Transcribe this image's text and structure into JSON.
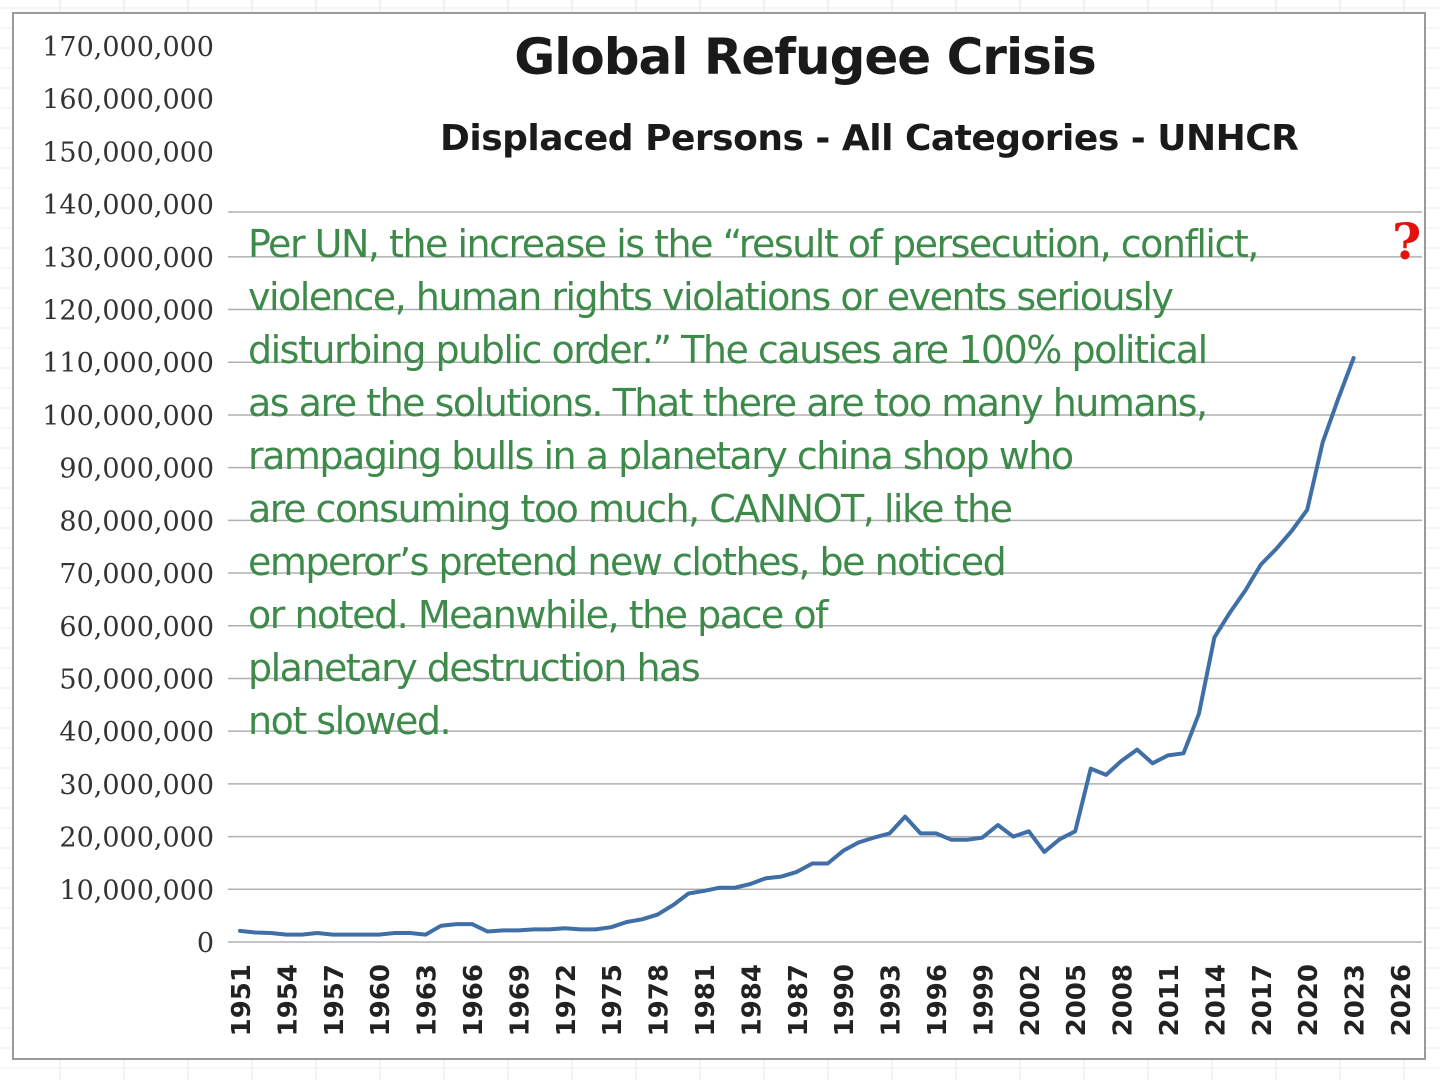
{
  "chart_data": {
    "type": "line",
    "title": "Global Refugee Crisis",
    "subtitle": "Displaced Persons - All Categories - UNHCR",
    "xlabel": "",
    "ylabel": "",
    "ylim": [
      0,
      170000000
    ],
    "xlim": [
      1951,
      2026
    ],
    "grid": "horizontal",
    "y_tick_labels": [
      "0",
      "10,000,000",
      "20,000,000",
      "30,000,000",
      "40,000,000",
      "50,000,000",
      "60,000,000",
      "70,000,000",
      "80,000,000",
      "90,000,000",
      "100,000,000",
      "110,000,000",
      "120,000,000",
      "130,000,000",
      "140,000,000",
      "150,000,000",
      "160,000,000",
      "170,000,000"
    ],
    "x_tick_labels": [
      "1951",
      "1954",
      "1957",
      "1960",
      "1963",
      "1966",
      "1969",
      "1972",
      "1975",
      "1978",
      "1981",
      "1984",
      "1987",
      "1990",
      "1993",
      "1996",
      "1999",
      "2002",
      "2005",
      "2008",
      "2011",
      "2014",
      "2017",
      "2020",
      "2023",
      "2026"
    ],
    "series": [
      {
        "color": "#3f6fa6",
        "x": [
          1951,
          1952,
          1953,
          1954,
          1955,
          1956,
          1957,
          1958,
          1959,
          1960,
          1961,
          1962,
          1963,
          1964,
          1965,
          1966,
          1967,
          1968,
          1969,
          1970,
          1971,
          1972,
          1973,
          1974,
          1975,
          1976,
          1977,
          1978,
          1979,
          1980,
          1981,
          1982,
          1983,
          1984,
          1985,
          1986,
          1987,
          1988,
          1989,
          1990,
          1991,
          1992,
          1993,
          1994,
          1995,
          1996,
          1997,
          1998,
          1999,
          2000,
          2001,
          2002,
          2003,
          2004,
          2005,
          2006,
          2007,
          2008,
          2009,
          2010,
          2011,
          2012,
          2013,
          2014,
          2015,
          2016,
          2017,
          2018,
          2019,
          2020,
          2021,
          2022,
          2023
        ],
        "y": [
          2100000,
          1800000,
          1700000,
          1400000,
          1400000,
          1700000,
          1400000,
          1400000,
          1400000,
          1400000,
          1700000,
          1700000,
          1400000,
          3100000,
          3400000,
          3400000,
          2000000,
          2200000,
          2200000,
          2400000,
          2400000,
          2600000,
          2400000,
          2400000,
          2800000,
          3800000,
          4300000,
          5200000,
          7000000,
          9200000,
          9700000,
          10300000,
          10300000,
          11000000,
          12100000,
          12400000,
          13300000,
          14900000,
          14900000,
          17300000,
          18900000,
          19800000,
          20600000,
          23800000,
          20600000,
          20600000,
          19400000,
          19400000,
          19800000,
          22200000,
          20000000,
          21000000,
          17100000,
          19500000,
          21000000,
          32900000,
          31700000,
          34400000,
          36500000,
          33900000,
          35400000,
          35800000,
          43300000,
          57800000,
          62500000,
          66700000,
          71600000,
          74600000,
          78000000,
          82000000,
          94800000,
          103000000,
          110800000
        ]
      }
    ]
  },
  "annotation": {
    "lines": [
      "Per UN, the increase is the “result of persecution, conflict,",
      "violence, human rights violations or events seriously",
      "disturbing public order.”  The causes are 100% political",
      "as are the solutions.  That there are too many humans,",
      "rampaging bulls in a planetary china shop who",
      "are consuming too much, CANNOT, like the",
      "emperor’s pretend new clothes, be noticed",
      "or noted.  Meanwhile, the pace of",
      "planetary destruction has",
      "not slowed."
    ],
    "question_mark": "?"
  },
  "colors": {
    "annotation": "#3d8a4a",
    "question_mark": "#e3120b",
    "series": "#3f6fa6",
    "gridline": "#b0b0b0"
  }
}
